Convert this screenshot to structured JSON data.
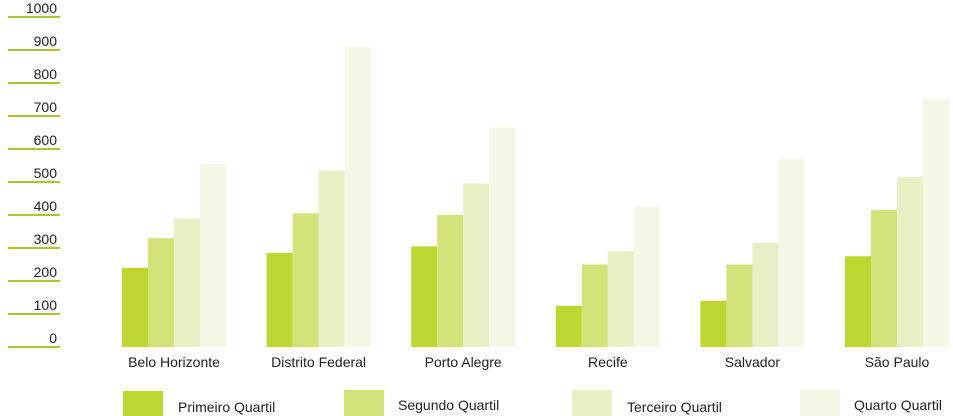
{
  "chart_data": {
    "type": "bar",
    "title": "",
    "xlabel": "",
    "ylabel": "",
    "ylim": [
      0,
      1000
    ],
    "yticks": [
      0,
      100,
      200,
      300,
      400,
      500,
      600,
      700,
      800,
      900,
      1000
    ],
    "grid": false,
    "legend_position": "bottom",
    "categories": [
      "Belo Horizonte",
      "Distrito Federal",
      "Porto Alegre",
      "Recife",
      "Salvador",
      "São Paulo"
    ],
    "series": [
      {
        "name": "Primeiro Quartil",
        "color": "#bfd630",
        "values": [
          240,
          285,
          305,
          125,
          140,
          275
        ]
      },
      {
        "name": "Segundo Quartil",
        "color": "#d4e27a",
        "values": [
          330,
          405,
          400,
          250,
          250,
          415
        ]
      },
      {
        "name": "Terceiro Quartil",
        "color": "#e8f0c6",
        "values": [
          390,
          535,
          495,
          290,
          315,
          515
        ]
      },
      {
        "name": "Quarto Quartil",
        "color": "#f5f8e6",
        "values": [
          555,
          910,
          665,
          425,
          570,
          750
        ]
      }
    ],
    "axis_color": "#a8c532"
  }
}
